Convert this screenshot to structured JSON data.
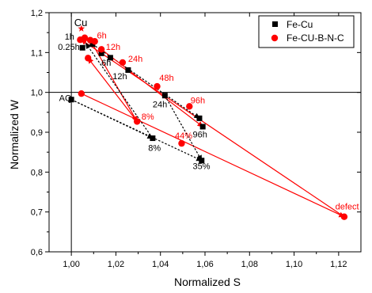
{
  "chart_data": {
    "type": "scatter",
    "xlabel": "Normalized S",
    "ylabel": "Normalized W",
    "xlim": [
      0.99,
      1.13
    ],
    "ylim": [
      0.6,
      1.2
    ],
    "xticks": [
      "1,00",
      "1,02",
      "1,04",
      "1,06",
      "1,08",
      "1,10",
      "1,12"
    ],
    "yticks": [
      "0,6",
      "0,7",
      "0,8",
      "0,9",
      "1,0",
      "1,1",
      "1,2"
    ],
    "xtick_values": [
      1.0,
      1.02,
      1.04,
      1.06,
      1.08,
      1.1,
      1.12
    ],
    "ytick_values": [
      0.6,
      0.7,
      0.8,
      0.9,
      1.0,
      1.1,
      1.2
    ],
    "reference_lines": {
      "x": 1.0,
      "y": 1.0
    },
    "legend_position": "top-right",
    "colors": {
      "fe_cu": "#000000",
      "fe_cu_bnc": "#ff0000"
    },
    "series": [
      {
        "name": "Fe-Cu",
        "marker": "square",
        "color": "#000000",
        "points": [
          {
            "x": 1.0,
            "y": 0.982
          },
          {
            "x": 1.0365,
            "y": 0.885
          },
          {
            "x": 1.0585,
            "y": 0.829
          },
          {
            "x": 1.005,
            "y": 1.112
          },
          {
            "x": 1.0095,
            "y": 1.121
          },
          {
            "x": 1.0135,
            "y": 1.098
          },
          {
            "x": 1.0175,
            "y": 1.087
          },
          {
            "x": 1.0255,
            "y": 1.056
          },
          {
            "x": 1.042,
            "y": 0.992
          },
          {
            "x": 1.0575,
            "y": 0.935
          },
          {
            "x": 1.059,
            "y": 0.914
          }
        ]
      },
      {
        "name": "Fe-CU-B-N-C",
        "marker": "circle",
        "color": "#ff0000",
        "points": [
          {
            "x": 1.0045,
            "y": 0.997
          },
          {
            "x": 1.0295,
            "y": 0.927
          },
          {
            "x": 1.0495,
            "y": 0.872
          },
          {
            "x": 1.1225,
            "y": 0.688
          },
          {
            "x": 1.004,
            "y": 1.132
          },
          {
            "x": 1.006,
            "y": 1.137
          },
          {
            "x": 1.0085,
            "y": 1.131
          },
          {
            "x": 1.0105,
            "y": 1.128
          },
          {
            "x": 1.0075,
            "y": 1.086
          },
          {
            "x": 1.0135,
            "y": 1.108
          },
          {
            "x": 1.023,
            "y": 1.075
          },
          {
            "x": 1.0385,
            "y": 1.015
          },
          {
            "x": 1.053,
            "y": 0.965
          }
        ]
      }
    ],
    "cu_reference": {
      "label": "Cu",
      "x": 1.0045,
      "y": 1.16
    },
    "annotations_black": [
      {
        "text": "AQ",
        "x": 0.9945,
        "y": 0.978
      },
      {
        "text": "8%",
        "x": 1.0345,
        "y": 0.853
      },
      {
        "text": "35%",
        "x": 1.0545,
        "y": 0.808
      },
      {
        "text": "1h",
        "x": 0.997,
        "y": 1.132
      },
      {
        "text": "0.25h",
        "x": 0.994,
        "y": 1.107
      },
      {
        "text": "6h",
        "x": 1.0135,
        "y": 1.067
      },
      {
        "text": "12h",
        "x": 1.0185,
        "y": 1.033
      },
      {
        "text": "24h",
        "x": 1.0365,
        "y": 0.963
      },
      {
        "text": "96h",
        "x": 1.0545,
        "y": 0.887
      }
    ],
    "annotations_red": [
      {
        "text": "8%",
        "x": 1.0315,
        "y": 0.932
      },
      {
        "text": "44%",
        "x": 1.0465,
        "y": 0.884
      },
      {
        "text": "defect",
        "x": 1.1185,
        "y": 0.706
      },
      {
        "text": "6h",
        "x": 1.0115,
        "y": 1.135
      },
      {
        "text": "12h",
        "x": 1.0155,
        "y": 1.107
      },
      {
        "text": "24h",
        "x": 1.0255,
        "y": 1.077
      },
      {
        "text": "48h",
        "x": 1.0395,
        "y": 1.029
      },
      {
        "text": "96h",
        "x": 1.0535,
        "y": 0.973
      }
    ],
    "arrows": [
      {
        "color": "#000000",
        "dashed": true,
        "from": [
          1.0,
          0.982
        ],
        "to": [
          1.0365,
          0.885
        ]
      },
      {
        "color": "#000000",
        "dashed": true,
        "from": [
          1.0,
          0.982
        ],
        "to": [
          1.0585,
          0.829
        ]
      },
      {
        "color": "#ff0000",
        "dashed": false,
        "from": [
          1.0045,
          0.997
        ],
        "to": [
          1.1225,
          0.688
        ]
      },
      {
        "color": "#ff0000",
        "dashed": false,
        "from": [
          1.1225,
          0.688
        ],
        "to": [
          1.0045,
          1.132
        ]
      },
      {
        "color": "#ff0000",
        "dashed": false,
        "from": [
          1.0295,
          0.927
        ],
        "to": [
          1.0075,
          1.086
        ]
      },
      {
        "color": "#ff0000",
        "dashed": false,
        "from": [
          1.0085,
          1.131
        ],
        "to": [
          1.0295,
          0.927
        ]
      },
      {
        "color": "#000000",
        "dashed": true,
        "from": [
          1.0365,
          0.885
        ],
        "to": [
          1.0065,
          1.123
        ]
      },
      {
        "color": "#000000",
        "dashed": true,
        "from": [
          1.0095,
          1.121
        ],
        "to": [
          1.0575,
          0.935
        ]
      },
      {
        "color": "#ff0000",
        "dashed": false,
        "from": [
          1.0135,
          1.108
        ],
        "to": [
          1.059,
          0.914
        ]
      },
      {
        "color": "#000000",
        "dashed": true,
        "from": [
          1.042,
          0.992
        ],
        "to": [
          1.0585,
          0.829
        ]
      }
    ]
  }
}
